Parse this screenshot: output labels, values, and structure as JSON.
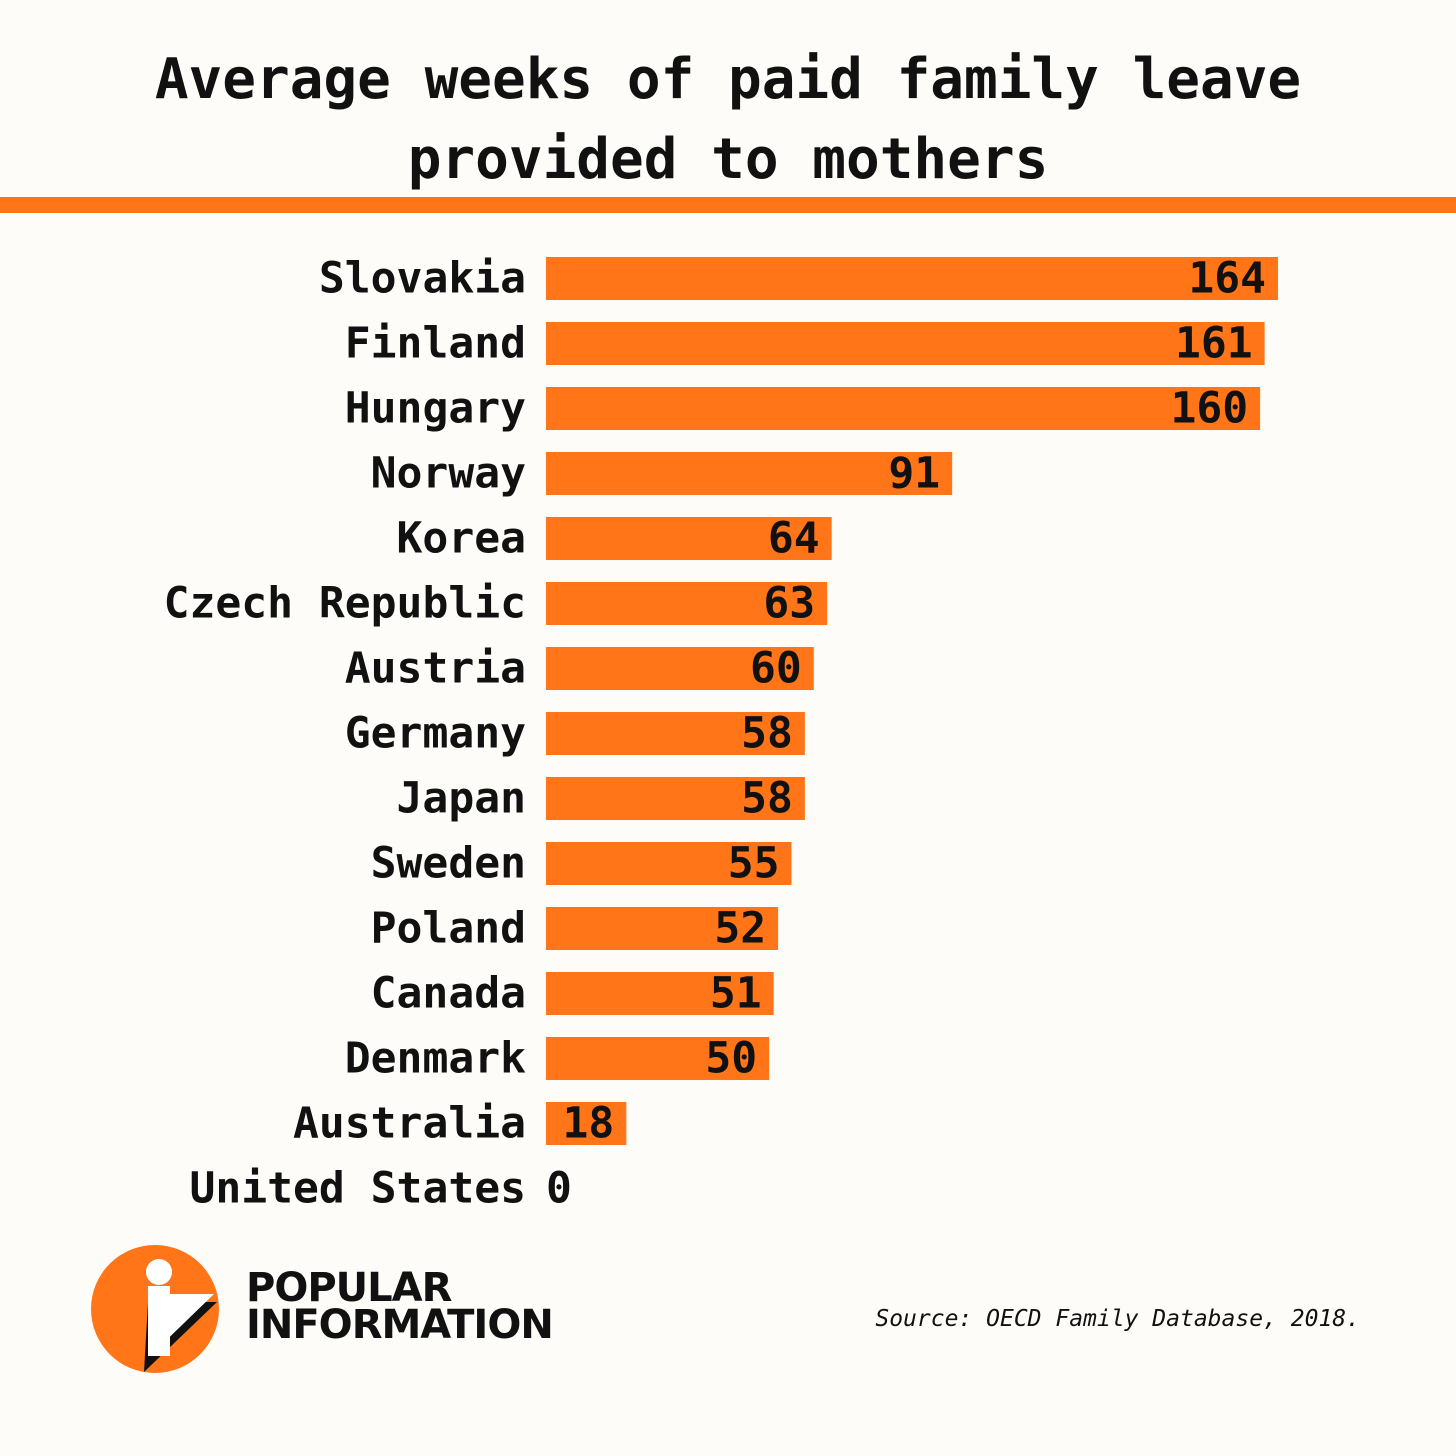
{
  "chart_data": {
    "type": "bar",
    "orientation": "horizontal",
    "title_lines": [
      "Average weeks of paid family leave",
      "provided to mothers"
    ],
    "categories": [
      "Slovakia",
      "Finland",
      "Hungary",
      "Norway",
      "Korea",
      "Czech Republic",
      "Austria",
      "Germany",
      "Japan",
      "Sweden",
      "Poland",
      "Canada",
      "Denmark",
      "Australia",
      "United States"
    ],
    "values": [
      164,
      161,
      160,
      91,
      64,
      63,
      60,
      58,
      58,
      55,
      52,
      51,
      50,
      18,
      0
    ],
    "value_labels": [
      "164",
      "161",
      "160",
      "91",
      "64",
      "63",
      "60",
      "58",
      "58",
      "55",
      "52",
      "51",
      "50",
      "18",
      "0"
    ],
    "xlim": [
      0,
      164
    ],
    "grid": false,
    "bar_color": "#ff7518"
  },
  "brand": {
    "line1": "POPULAR",
    "line2": "INFORMATION"
  },
  "source": "Source: OECD Family Database, 2018.",
  "colors": {
    "accent": "#ff7518",
    "background": "#fdfcf8",
    "text": "#111111"
  }
}
